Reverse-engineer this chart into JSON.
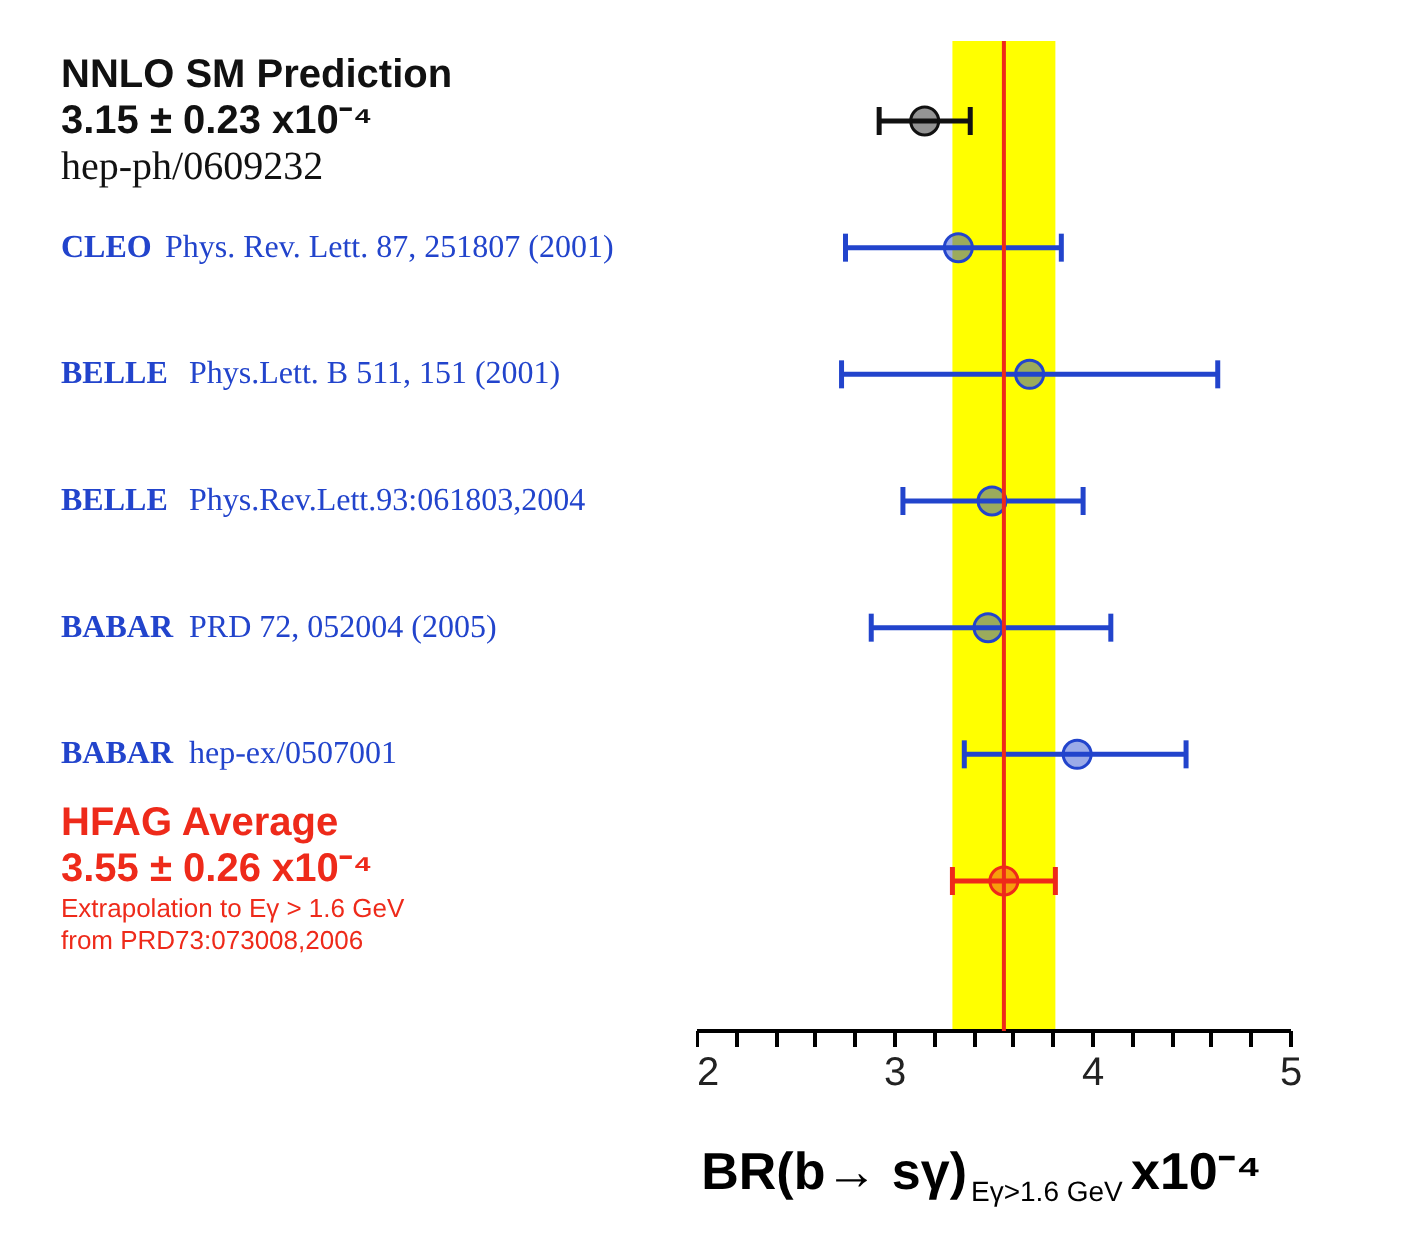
{
  "chart_data": {
    "type": "scatter",
    "orientation": "horizontal",
    "categories": [
      "NNLO SM Prediction\n3.15 ± 0.23 x10⁻⁴\nhep-ph/0609232",
      "CLEO Phys. Rev. Lett. 87, 251807 (2001)",
      "BELLE Phys.Lett. B 511, 151 (2001)",
      "BELLE Phys.Rev.Lett.93:061803,2004",
      "BABAR  PRD 72, 052004 (2005)",
      "BABAR hep-ex/0507001",
      "HFAG Average\n3.55 ± 0.26 x10⁻⁴\nExtrapolation to Eγ > 1.6 GeV\nfrom PRD73:073008,2006"
    ],
    "series": [
      {
        "color": "#111111",
        "values": [
          3.15,
          null,
          null,
          null,
          null,
          null,
          null
        ],
        "errors": [
          0.23,
          null,
          null,
          null,
          null,
          null,
          null
        ]
      },
      {
        "color": "#2244cc",
        "values": [
          null,
          3.32,
          3.68,
          3.49,
          3.47,
          3.92,
          null
        ],
        "errors": [
          null,
          [
            2.75,
            3.84
          ],
          [
            2.73,
            4.63
          ],
          [
            3.04,
            3.95
          ],
          [
            2.88,
            4.09
          ],
          [
            3.35,
            4.47
          ],
          null
        ]
      },
      {
        "color": "#ee2a1a",
        "values": [
          null,
          null,
          null,
          null,
          null,
          null,
          3.55
        ],
        "errors": [
          null,
          null,
          null,
          null,
          null,
          null,
          0.26
        ]
      }
    ],
    "marker": "circle",
    "xlim": [
      2,
      5
    ],
    "xticks": [
      2,
      {
        "value": 2.2,
        "label": null
      },
      {
        "value": 2.4,
        "label": null
      },
      {
        "value": 2.6,
        "label": null
      },
      {
        "value": 2.8,
        "label": null
      },
      3,
      {
        "value": 3.2,
        "label": null
      },
      {
        "value": 3.4,
        "label": null
      },
      {
        "value": 3.6,
        "label": null
      },
      {
        "value": 3.8,
        "label": null
      },
      4,
      {
        "value": 4.2,
        "label": null
      },
      {
        "value": 4.4,
        "label": null
      },
      {
        "value": 4.6,
        "label": null
      },
      {
        "value": 4.8,
        "label": null
      },
      5
    ],
    "xlabel": "BR(b→ sγ)$_{Eγ>1.6 GeV}$x10⁻⁴",
    "ref_lines": [
      {
        "axis": "x",
        "value": 3.55,
        "color": "#ee2a1a"
      }
    ],
    "bands": [
      {
        "axis": "x",
        "from": 3.29,
        "to": 3.81,
        "color": "#ffff00"
      }
    ],
    "grid": false
  }
}
